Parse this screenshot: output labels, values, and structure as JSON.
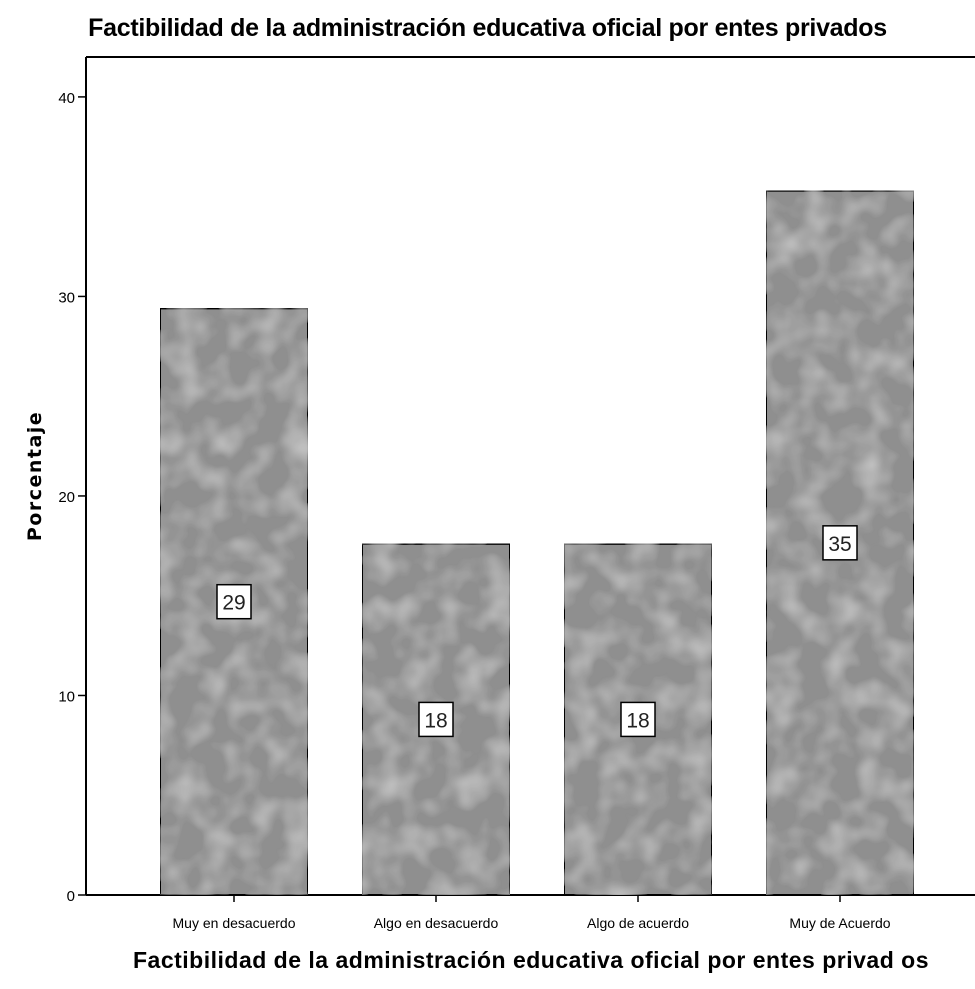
{
  "chart_data": {
    "type": "bar",
    "title": "Factibilidad de la administración educativa oficial por entes privados",
    "xlabel": "Factibilidad de la administración educativa oficial por entes privad os",
    "ylabel": "Porcentaje",
    "categories": [
      "Muy en desacuerdo",
      "Algo en desacuerdo",
      "Algo de acuerdo",
      "Muy de Acuerdo"
    ],
    "values": [
      29.4,
      17.6,
      17.6,
      35.3
    ],
    "data_labels": [
      "29",
      "18",
      "18",
      "35"
    ],
    "yticks": [
      "0",
      "10",
      "20",
      "30",
      "40"
    ],
    "ylim": [
      0,
      42
    ],
    "grid": false,
    "legend": "none",
    "colors": {
      "bar": "#8f8f8f",
      "bar_light": "#9c9c9c",
      "frame": "#000000"
    }
  }
}
